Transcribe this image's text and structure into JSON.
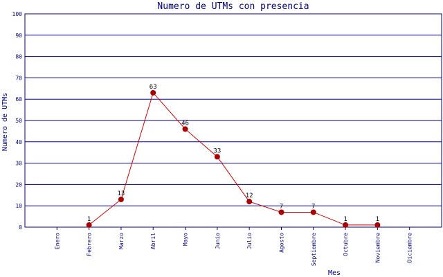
{
  "chart_data": {
    "type": "line",
    "title": "Numero de UTMs con presencia",
    "x_label": "Mes",
    "y_label": "Numero de UTMs",
    "categories": [
      "Enero",
      "Febrero",
      "Marzo",
      "Abril",
      "Mayo",
      "Junio",
      "Julio",
      "Agosto",
      "Septiembre",
      "Octubre",
      "Noviembre",
      "Diciembre"
    ],
    "values": [
      null,
      1,
      13,
      63,
      46,
      33,
      12,
      7,
      7,
      1,
      1,
      null
    ],
    "color": "#cc0000",
    "marker_color": "#aa0000",
    "ylim": [
      0,
      100
    ],
    "yticks": [
      0,
      10,
      20,
      30,
      40,
      50,
      60,
      70,
      80,
      90,
      100
    ],
    "grid": true
  }
}
